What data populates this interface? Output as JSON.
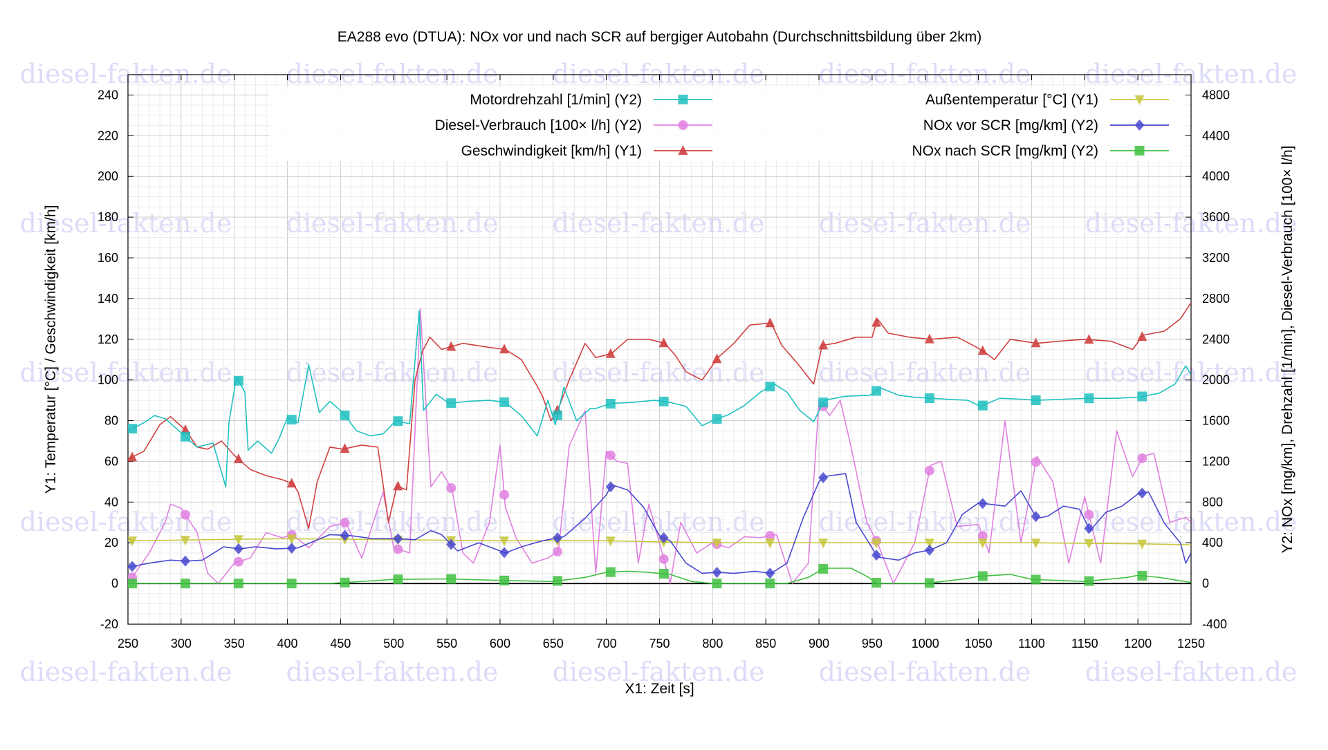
{
  "chart_data": {
    "type": "line",
    "title": "EA288 evo (DTUA): NOx vor und nach SCR auf bergiger Autobahn (Durchschnittsbildung über 2km)",
    "xlabel": "X1: Zeit [s]",
    "y1label": "Y1: Temperatur [°C] / Geschwindigkeit [km/h]",
    "y2label": "Y2: NOx [mg/km], Drehzahl [1/min], Diesel-Verbrauch [100× l/h]",
    "xlim": [
      250,
      1250
    ],
    "y1lim": [
      -20,
      250
    ],
    "y2lim": [
      -400,
      5000
    ],
    "xticks": [
      250,
      300,
      350,
      400,
      450,
      500,
      550,
      600,
      650,
      700,
      750,
      800,
      850,
      900,
      950,
      1000,
      1050,
      1100,
      1150,
      1200,
      1250
    ],
    "y1ticks": [
      -20,
      0,
      20,
      40,
      60,
      80,
      100,
      120,
      140,
      160,
      180,
      200,
      220,
      240
    ],
    "y2ticks": [
      -400,
      0,
      400,
      800,
      1200,
      1600,
      2000,
      2400,
      2800,
      3200,
      3600,
      4000,
      4400,
      4800
    ],
    "grid": true,
    "legend_position": "top",
    "watermark": "diesel-fakten.de",
    "series": [
      {
        "name": "Motordrehzahl [1/min] (Y2)",
        "axis": "y2",
        "color": "#20c0c0",
        "marker": "square",
        "x": [
          250,
          265,
          275,
          285,
          300,
          315,
          330,
          342,
          345,
          352,
          360,
          363,
          372,
          385,
          392,
          400,
          410,
          420,
          430,
          440,
          452,
          465,
          478,
          490,
          502,
          515,
          524,
          528,
          540,
          552,
          570,
          590,
          605,
          620,
          635,
          645,
          652,
          660,
          672,
          685,
          690,
          705,
          725,
          745,
          760,
          775,
          790,
          800,
          815,
          830,
          845,
          858,
          870,
          882,
          895,
          905,
          925,
          948,
          958,
          975,
          990,
          1005,
          1020,
          1040,
          1052,
          1070,
          1090,
          1105,
          1130,
          1155,
          1180,
          1200,
          1220,
          1235,
          1245,
          1250
        ],
        "values": [
          1500,
          1580,
          1650,
          1620,
          1480,
          1340,
          1380,
          950,
          1580,
          2030,
          1880,
          1310,
          1400,
          1280,
          1420,
          1630,
          1580,
          2150,
          1680,
          1790,
          1680,
          1500,
          1450,
          1470,
          1600,
          1570,
          2680,
          1700,
          1860,
          1770,
          1790,
          1800,
          1780,
          1650,
          1450,
          1800,
          1560,
          1930,
          1600,
          1720,
          1720,
          1770,
          1780,
          1800,
          1780,
          1740,
          1550,
          1600,
          1660,
          1750,
          1880,
          1960,
          1880,
          1700,
          1590,
          1800,
          1840,
          1850,
          1920,
          1850,
          1830,
          1820,
          1810,
          1800,
          1740,
          1820,
          1810,
          1800,
          1810,
          1820,
          1820,
          1830,
          1870,
          1960,
          2140,
          2050
        ],
        "markers_x": [
          254,
          304,
          354,
          404,
          454,
          504,
          554,
          604,
          654,
          704,
          754,
          804,
          854,
          904,
          954,
          1004,
          1054,
          1104,
          1154,
          1204
        ]
      },
      {
        "name": "Diesel-Verbrauch [100× l/h] (Y2)",
        "axis": "y2",
        "color": "#e080e0",
        "marker": "circle",
        "x": [
          250,
          270,
          285,
          290,
          300,
          315,
          325,
          335,
          350,
          365,
          380,
          395,
          405,
          420,
          440,
          455,
          470,
          490,
          500,
          515,
          525,
          535,
          545,
          555,
          565,
          575,
          590,
          600,
          605,
          615,
          630,
          645,
          655,
          665,
          680,
          690,
          700,
          710,
          720,
          730,
          740,
          750,
          760,
          770,
          785,
          800,
          815,
          830,
          845,
          860,
          875,
          890,
          900,
          910,
          920,
          930,
          945,
          955,
          970,
          990,
          1005,
          1015,
          1030,
          1050,
          1060,
          1075,
          1090,
          1105,
          1120,
          1135,
          1150,
          1165,
          1180,
          1195,
          1205,
          1215,
          1230,
          1245,
          1250
        ],
        "values": [
          0,
          300,
          600,
          780,
          740,
          500,
          100,
          0,
          200,
          250,
          500,
          450,
          480,
          350,
          560,
          600,
          250,
          900,
          350,
          300,
          2700,
          950,
          1100,
          920,
          300,
          200,
          600,
          1360,
          750,
          450,
          200,
          250,
          320,
          1350,
          1700,
          100,
          1300,
          1200,
          1180,
          200,
          780,
          400,
          0,
          600,
          300,
          400,
          350,
          460,
          450,
          480,
          0,
          200,
          1800,
          1650,
          1800,
          1350,
          600,
          400,
          0,
          400,
          1160,
          1200,
          560,
          580,
          300,
          1600,
          400,
          1250,
          1000,
          200,
          850,
          200,
          1500,
          1050,
          1250,
          1280,
          600,
          650,
          600
        ],
        "markers_x": [
          254,
          304,
          354,
          404,
          454,
          504,
          554,
          604,
          654,
          704,
          754,
          804,
          854,
          904,
          954,
          1004,
          1054,
          1104,
          1154,
          1204
        ]
      },
      {
        "name": "Geschwindigkeit [km/h] (Y1)",
        "axis": "y1",
        "color": "#d04040",
        "marker": "triangle-up",
        "x": [
          250,
          265,
          280,
          290,
          305,
          315,
          325,
          338,
          350,
          365,
          380,
          395,
          405,
          410,
          420,
          428,
          440,
          452,
          470,
          485,
          495,
          503,
          512,
          520,
          527,
          534,
          545,
          565,
          590,
          605,
          620,
          635,
          640,
          648,
          655,
          665,
          680,
          690,
          705,
          720,
          740,
          755,
          765,
          775,
          790,
          805,
          820,
          835,
          855,
          865,
          880,
          895,
          903,
          915,
          935,
          950,
          955,
          965,
          985,
          1005,
          1030,
          1045,
          1055,
          1065,
          1080,
          1105,
          1125,
          1150,
          1175,
          1195,
          1205,
          1225,
          1240,
          1250
        ],
        "values": [
          61,
          65,
          78,
          82,
          75,
          67,
          66,
          70,
          63,
          56,
          53,
          51,
          49,
          45,
          27,
          50,
          67,
          66,
          68,
          67,
          30,
          48,
          46,
          100,
          114,
          121,
          115,
          118,
          116,
          115,
          110,
          97,
          92,
          80,
          86,
          100,
          118,
          111,
          113,
          120,
          120,
          118,
          112,
          104,
          100,
          111,
          118,
          127,
          128,
          117,
          108,
          98,
          117,
          118,
          121,
          121,
          130,
          123,
          121,
          120,
          121,
          117,
          114,
          110,
          120,
          118,
          119,
          120,
          119,
          115,
          122,
          124,
          130,
          138
        ],
        "markers_x": [
          254,
          304,
          354,
          404,
          454,
          504,
          554,
          604,
          654,
          704,
          754,
          804,
          854,
          904,
          954,
          1004,
          1054,
          1104,
          1154,
          1204
        ]
      },
      {
        "name": "Außentemperatur [°C] (Y1)",
        "axis": "y1",
        "color": "#c8c840",
        "marker": "triangle-down",
        "x": [
          250,
          400,
          500,
          600,
          700,
          800,
          900,
          1000,
          1100,
          1200,
          1250
        ],
        "values": [
          21,
          22,
          21.5,
          21,
          21,
          20,
          20,
          20,
          20,
          19.5,
          19
        ],
        "markers_x": [
          254,
          304,
          354,
          404,
          454,
          504,
          554,
          604,
          654,
          704,
          754,
          804,
          854,
          904,
          954,
          1004,
          1054,
          1104,
          1154,
          1204
        ]
      },
      {
        "name": "NOx vor SCR [mg/km] (Y2)",
        "axis": "y2",
        "color": "#4848d0",
        "marker": "diamond",
        "x": [
          250,
          270,
          290,
          305,
          320,
          340,
          355,
          370,
          390,
          410,
          440,
          460,
          480,
          505,
          520,
          535,
          545,
          560,
          580,
          605,
          620,
          640,
          660,
          680,
          700,
          705,
          720,
          735,
          750,
          760,
          775,
          790,
          805,
          820,
          840,
          855,
          870,
          885,
          900,
          905,
          925,
          935,
          950,
          955,
          975,
          990,
          1005,
          1020,
          1035,
          1050,
          1060,
          1075,
          1090,
          1105,
          1115,
          1130,
          1145,
          1155,
          1170,
          1185,
          1200,
          1210,
          1225,
          1240,
          1245,
          1250
        ],
        "values": [
          160,
          200,
          230,
          220,
          230,
          360,
          340,
          360,
          340,
          350,
          480,
          470,
          440,
          440,
          430,
          520,
          480,
          320,
          400,
          300,
          360,
          420,
          460,
          640,
          870,
          970,
          920,
          750,
          470,
          420,
          200,
          100,
          110,
          100,
          120,
          100,
          200,
          640,
          1000,
          1050,
          1080,
          600,
          350,
          260,
          230,
          300,
          330,
          400,
          680,
          790,
          780,
          760,
          910,
          640,
          660,
          760,
          730,
          520,
          700,
          760,
          880,
          900,
          590,
          400,
          200,
          300
        ],
        "markers_x": [
          254,
          304,
          354,
          404,
          454,
          504,
          554,
          604,
          654,
          704,
          754,
          804,
          854,
          904,
          954,
          1004,
          1054,
          1104,
          1154,
          1204
        ]
      },
      {
        "name": "NOx nach SCR [mg/km] (Y2)",
        "axis": "y2",
        "color": "#40c040",
        "marker": "square",
        "x": [
          250,
          440,
          500,
          550,
          600,
          650,
          680,
          700,
          720,
          740,
          760,
          780,
          800,
          870,
          890,
          905,
          930,
          945,
          955,
          1000,
          1040,
          1050,
          1080,
          1100,
          1150,
          1190,
          1200,
          1220,
          1250
        ],
        "values": [
          0,
          0,
          40,
          45,
          30,
          20,
          60,
          110,
          120,
          110,
          90,
          20,
          0,
          0,
          60,
          150,
          150,
          70,
          0,
          0,
          50,
          70,
          90,
          40,
          20,
          60,
          80,
          60,
          10
        ],
        "markers_x": [
          254,
          304,
          354,
          404,
          454,
          504,
          554,
          604,
          654,
          704,
          754,
          804,
          854,
          904,
          954,
          1004,
          1054,
          1104,
          1154,
          1204
        ]
      }
    ]
  }
}
